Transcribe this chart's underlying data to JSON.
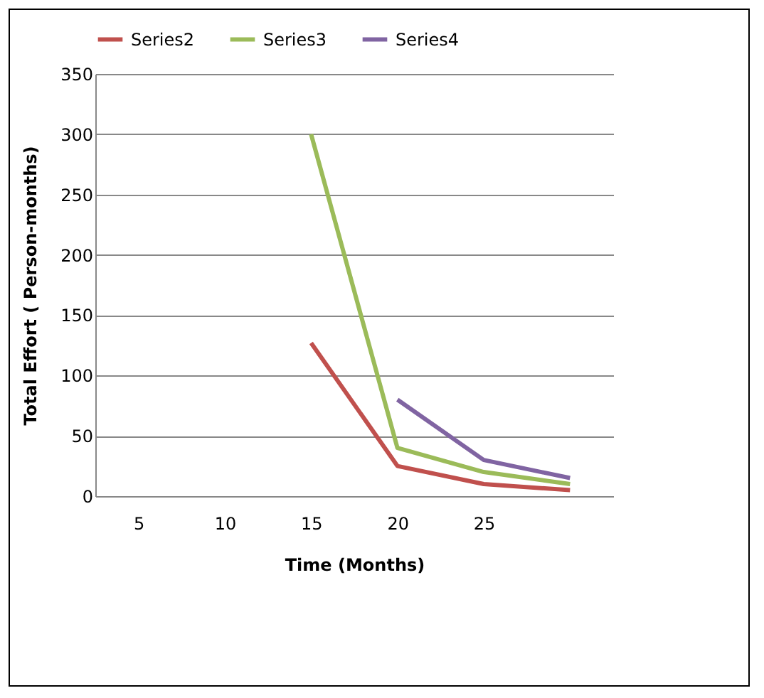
{
  "chart_data": {
    "type": "line",
    "xlabel": "Time (Months)",
    "ylabel": "Total Effort  ( Person-months)",
    "categories": [
      "5",
      "10",
      "15",
      "20",
      "25",
      null
    ],
    "series": [
      {
        "name": "Series2",
        "color": "#c0504d",
        "values": [
          null,
          null,
          127,
          25,
          10,
          5
        ]
      },
      {
        "name": "Series3",
        "color": "#9bbb59",
        "values": [
          null,
          null,
          300,
          40,
          20,
          10
        ]
      },
      {
        "name": "Series4",
        "color": "#8064a2",
        "values": [
          null,
          null,
          null,
          80,
          30,
          15
        ]
      }
    ],
    "ylim": [
      0,
      350
    ],
    "yticks": [
      0,
      50,
      100,
      150,
      200,
      250,
      300,
      350
    ],
    "grid": "y",
    "legend": "top",
    "marker": "none",
    "line_style": "solid"
  }
}
